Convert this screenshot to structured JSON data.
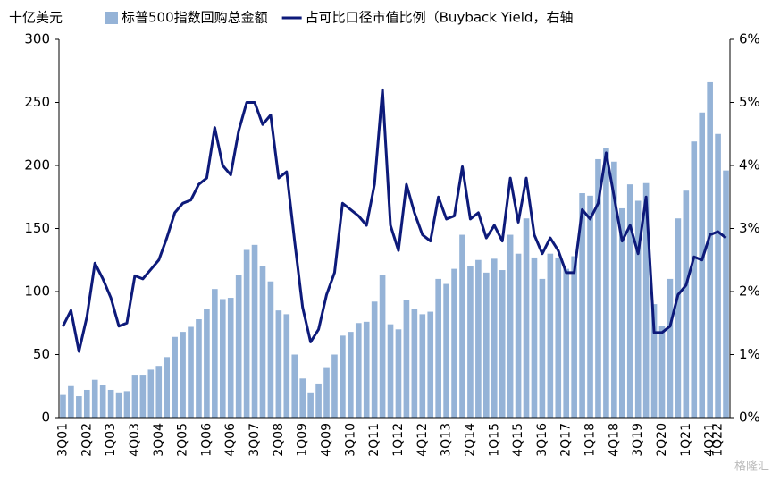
{
  "chart_data": {
    "type": "bar_line",
    "y_unit_label": "十亿美元",
    "watermark": "格隆汇",
    "categories": [
      "3Q01",
      null,
      null,
      "2Q02",
      null,
      null,
      "1Q03",
      null,
      null,
      "4Q03",
      null,
      null,
      "3Q04",
      null,
      null,
      "2Q05",
      null,
      null,
      "1Q06",
      null,
      null,
      "4Q06",
      null,
      null,
      "3Q07",
      null,
      null,
      "2Q08",
      null,
      null,
      "1Q09",
      null,
      null,
      "4Q09",
      null,
      null,
      "3Q10",
      null,
      null,
      "2Q11",
      null,
      null,
      "1Q12",
      null,
      null,
      "4Q12",
      null,
      null,
      "3Q13",
      null,
      null,
      "2Q14",
      null,
      null,
      "1Q15",
      null,
      null,
      "4Q15",
      null,
      null,
      "3Q16",
      null,
      null,
      "2Q17",
      null,
      null,
      "1Q18",
      null,
      null,
      "4Q18",
      null,
      null,
      "3Q19",
      null,
      null,
      "2Q20",
      null,
      null,
      "1Q21",
      null,
      null,
      "4Q21",
      "1Q22",
      null
    ],
    "series": [
      {
        "name": "标普500指数回购总金额",
        "type": "bar",
        "color": "#95b3d7",
        "values": [
          18,
          25,
          17,
          22,
          30,
          26,
          22,
          20,
          21,
          34,
          34,
          38,
          41,
          48,
          64,
          68,
          72,
          78,
          86,
          102,
          94,
          95,
          113,
          133,
          137,
          120,
          108,
          85,
          82,
          50,
          31,
          20,
          27,
          40,
          50,
          65,
          68,
          75,
          76,
          92,
          113,
          74,
          70,
          93,
          86,
          82,
          84,
          110,
          106,
          118,
          145,
          120,
          125,
          115,
          126,
          117,
          145,
          130,
          158,
          127,
          110,
          130,
          127,
          118,
          128,
          178,
          176,
          205,
          214,
          203,
          166,
          185,
          172,
          186,
          90,
          73,
          110,
          158,
          180,
          219,
          242,
          266,
          225,
          196
        ]
      },
      {
        "name": "占可比口径市值比例（Buyback Yield，右轴",
        "type": "line",
        "axis": "y2",
        "color": "#0d1a7a",
        "values": [
          1.45,
          1.7,
          1.05,
          1.6,
          2.45,
          2.2,
          1.9,
          1.45,
          1.5,
          2.25,
          2.2,
          2.35,
          2.5,
          2.85,
          3.25,
          3.4,
          3.45,
          3.7,
          3.8,
          4.6,
          4.0,
          3.85,
          4.55,
          5.0,
          5.0,
          4.65,
          4.8,
          3.8,
          3.9,
          2.8,
          1.75,
          1.2,
          1.4,
          1.95,
          2.3,
          3.4,
          3.3,
          3.2,
          3.05,
          3.7,
          5.2,
          3.05,
          2.65,
          3.7,
          3.25,
          2.9,
          2.8,
          3.5,
          3.15,
          3.2,
          3.98,
          3.15,
          3.25,
          2.85,
          3.05,
          2.8,
          3.8,
          3.1,
          3.8,
          2.9,
          2.6,
          2.85,
          2.65,
          2.3,
          2.3,
          3.3,
          3.15,
          3.4,
          4.2,
          3.5,
          2.8,
          3.05,
          2.6,
          3.5,
          1.35,
          1.35,
          1.45,
          1.95,
          2.1,
          2.55,
          2.5,
          2.9,
          2.95,
          2.85
        ]
      }
    ],
    "ylim": [
      0,
      300
    ],
    "yticks": [
      0,
      50,
      100,
      150,
      200,
      250,
      300
    ],
    "y2lim": [
      0,
      6
    ],
    "y2ticks": [
      {
        "value": 0,
        "label": "0%"
      },
      {
        "value": 1,
        "label": "1%"
      },
      {
        "value": 2,
        "label": "2%"
      },
      {
        "value": 3,
        "label": "3%"
      },
      {
        "value": 4,
        "label": "4%"
      },
      {
        "value": 5,
        "label": "5%"
      },
      {
        "value": 6,
        "label": "6%"
      }
    ]
  }
}
